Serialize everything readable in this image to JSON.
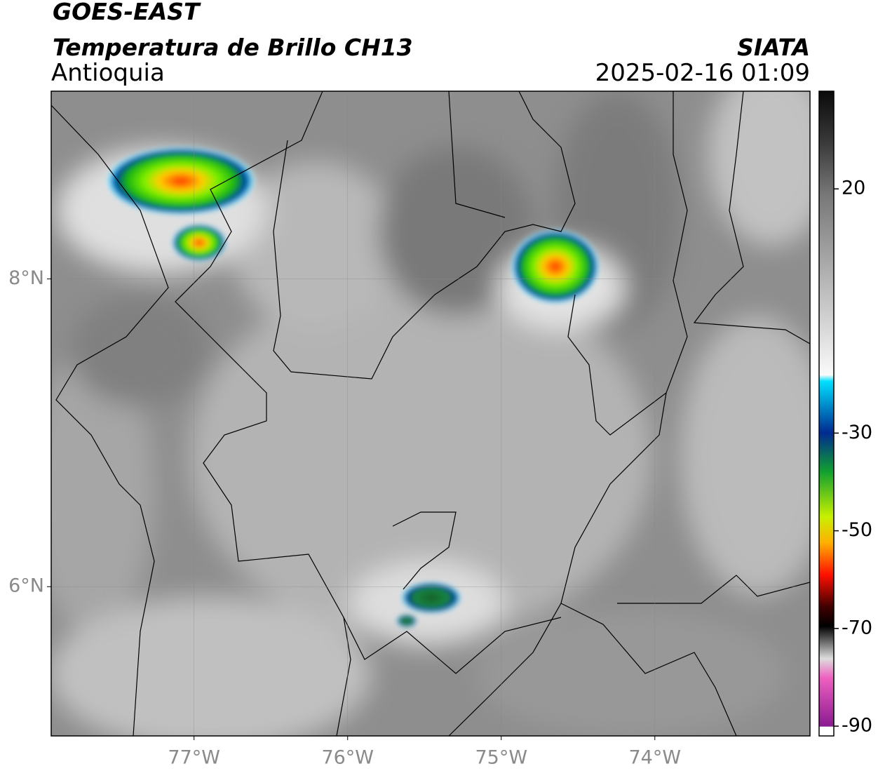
{
  "header": {
    "title": "GOES-EAST",
    "subtitle": "Temperatura de Brillo CH13",
    "region": "Antioquia",
    "source": "SIATA",
    "datetime": "2025-02-16 01:09"
  },
  "map": {
    "xlim": [
      -77.93,
      -72.99
    ],
    "ylim": [
      5.03,
      9.22
    ],
    "xticks": [
      {
        "value": -77,
        "label": "77°W"
      },
      {
        "value": -76,
        "label": "76°W"
      },
      {
        "value": -75,
        "label": "75°W"
      },
      {
        "value": -74,
        "label": "74°W"
      }
    ],
    "yticks": [
      {
        "value": 8,
        "label": "8°N"
      },
      {
        "value": 6,
        "label": "6°N"
      }
    ],
    "grid": true
  },
  "colorbar": {
    "lim": [
      -92,
      40
    ],
    "ticks": [
      20,
      -30,
      -50,
      -70,
      -90
    ]
  }
}
